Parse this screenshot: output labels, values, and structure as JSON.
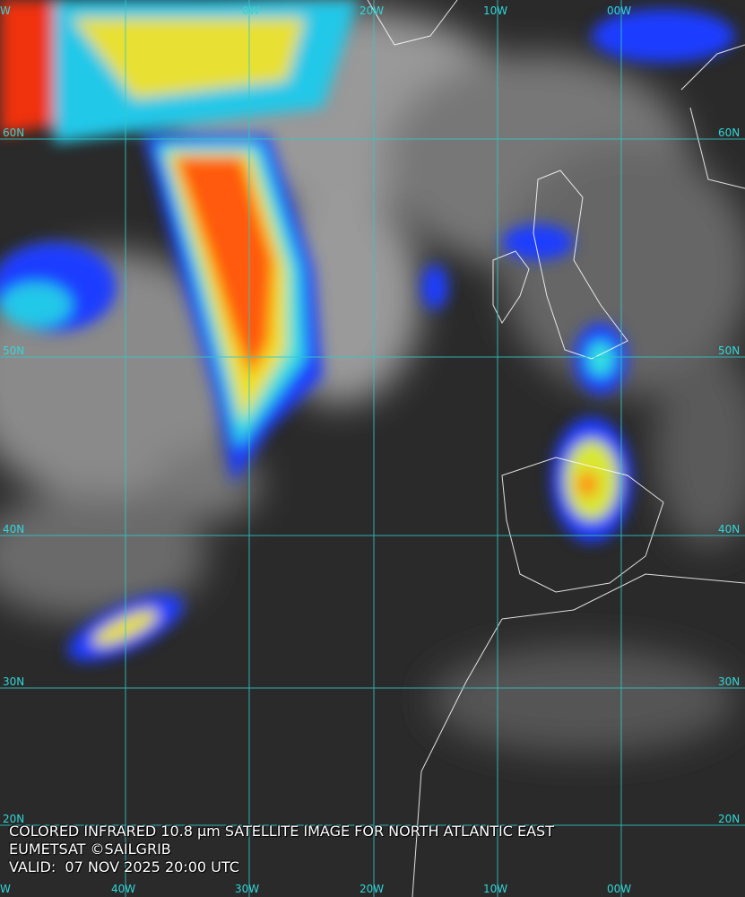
{
  "map": {
    "lon_labels_top": [
      "W",
      "0W",
      "20W",
      "10W",
      "00W"
    ],
    "lon_labels_bottom": [
      "W",
      "40W",
      "30W",
      "20W",
      "10W",
      "00W"
    ],
    "lat_labels_left": [
      "60N",
      "50N",
      "40N",
      "30N",
      "20N"
    ],
    "lat_labels_right": [
      "60N",
      "50N",
      "40N",
      "30N",
      "20N"
    ]
  },
  "caption": {
    "line1": "COLORED INFRARED 10.8 μm SATELLITE IMAGE FOR NORTH ATLANTIC EAST",
    "line2": "EUMETSAT ©SAILGRIB",
    "line3": "VALID:  07 NOV 2025 20:00 UTC"
  }
}
